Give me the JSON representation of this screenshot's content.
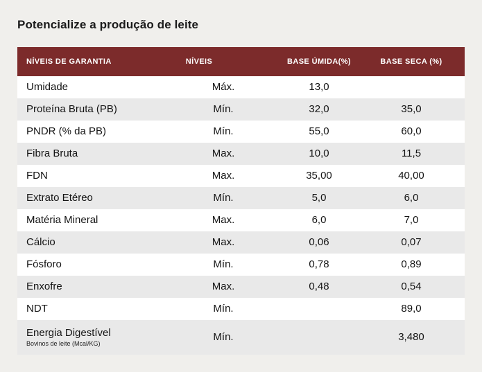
{
  "title": "Potencialize a produção de leite",
  "colors": {
    "page_background": "#f0efec",
    "header_background": "#7c2b2b",
    "header_text": "#ffffff",
    "row_stripe": "#e9e9e9",
    "row_white": "#ffffff",
    "body_text": "#141414"
  },
  "chart_data": {
    "type": "table",
    "title": "Potencialize a produção de leite",
    "columns": [
      "NÍVEIS DE GARANTIA",
      "NÍVEIS",
      "BASE ÚMIDA(%)",
      "BASE SECA (%)"
    ],
    "rows": [
      {
        "label": "Umidade",
        "nivel": "Máx.",
        "base_umida": "13,0",
        "base_seca": ""
      },
      {
        "label": "Proteína Bruta (PB)",
        "nivel": "Mín.",
        "base_umida": "32,0",
        "base_seca": "35,0"
      },
      {
        "label": "PNDR (% da PB)",
        "nivel": "Mín.",
        "base_umida": "55,0",
        "base_seca": "60,0"
      },
      {
        "label": "Fibra Bruta",
        "nivel": "Max.",
        "base_umida": "10,0",
        "base_seca": "11,5"
      },
      {
        "label": "FDN",
        "nivel": "Max.",
        "base_umida": "35,00",
        "base_seca": "40,00"
      },
      {
        "label": "Extrato Etéreo",
        "nivel": "Mín.",
        "base_umida": "5,0",
        "base_seca": "6,0"
      },
      {
        "label": "Matéria Mineral",
        "nivel": "Max.",
        "base_umida": "6,0",
        "base_seca": "7,0"
      },
      {
        "label": "Cálcio",
        "nivel": "Max.",
        "base_umida": "0,06",
        "base_seca": "0,07"
      },
      {
        "label": "Fósforo",
        "nivel": "Mín.",
        "base_umida": "0,78",
        "base_seca": "0,89"
      },
      {
        "label": "Enxofre",
        "nivel": "Max.",
        "base_umida": "0,48",
        "base_seca": "0,54"
      },
      {
        "label": "NDT",
        "nivel": "Mín.",
        "base_umida": "",
        "base_seca": "89,0"
      },
      {
        "label": "Energia Digestível",
        "sublabel": "Bovinos de leite (Mcal/KG)",
        "nivel": "Mín.",
        "base_umida": "",
        "base_seca": "3,480"
      }
    ]
  }
}
